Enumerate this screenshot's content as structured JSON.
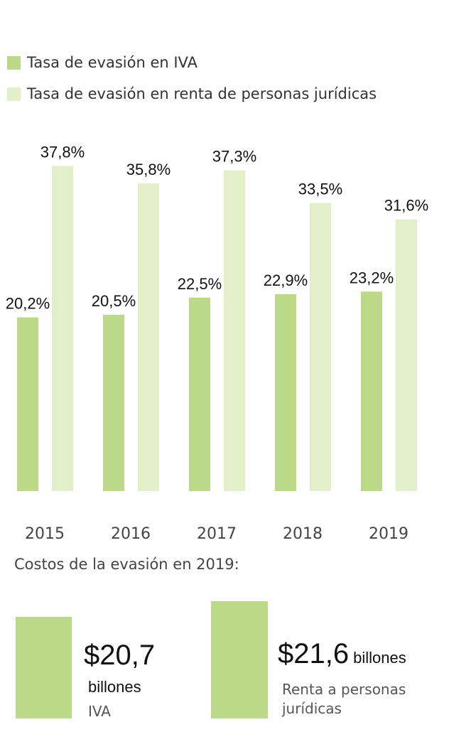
{
  "legend": [
    {
      "label": "Tasa de evasión en IVA",
      "color": "#bcd98a"
    },
    {
      "label": "Tasa de evasión en renta de personas jurídicas",
      "color": "#e3efc9"
    }
  ],
  "chart_data": {
    "type": "bar",
    "categories": [
      "2015",
      "2016",
      "2017",
      "2018",
      "2019"
    ],
    "series": [
      {
        "name": "Tasa de evasión en IVA",
        "values": [
          20.2,
          20.5,
          22.5,
          22.9,
          23.2
        ],
        "labels": [
          "20,2%",
          "20,5%",
          "22,5%",
          "22,9%",
          "23,2%"
        ],
        "color": "#bcd98a"
      },
      {
        "name": "Tasa de evasión en renta de personas jurídicas",
        "values": [
          37.8,
          35.8,
          37.3,
          33.5,
          31.6
        ],
        "labels": [
          "37,8%",
          "35,8%",
          "37,3%",
          "33,5%",
          "31,6%"
        ],
        "color": "#e3efc9"
      }
    ],
    "ylim": [
      0,
      42
    ],
    "grid": false
  },
  "costs": {
    "title": "Costos de la evasión en 2019:",
    "iva": {
      "amount": "$20,7",
      "unit": "billones",
      "label": "IVA",
      "color": "#bcd98a"
    },
    "renta": {
      "amount": "$21,6",
      "unit": "billones",
      "label": "Renta a personas jurídicas",
      "color": "#bcd98a"
    }
  }
}
